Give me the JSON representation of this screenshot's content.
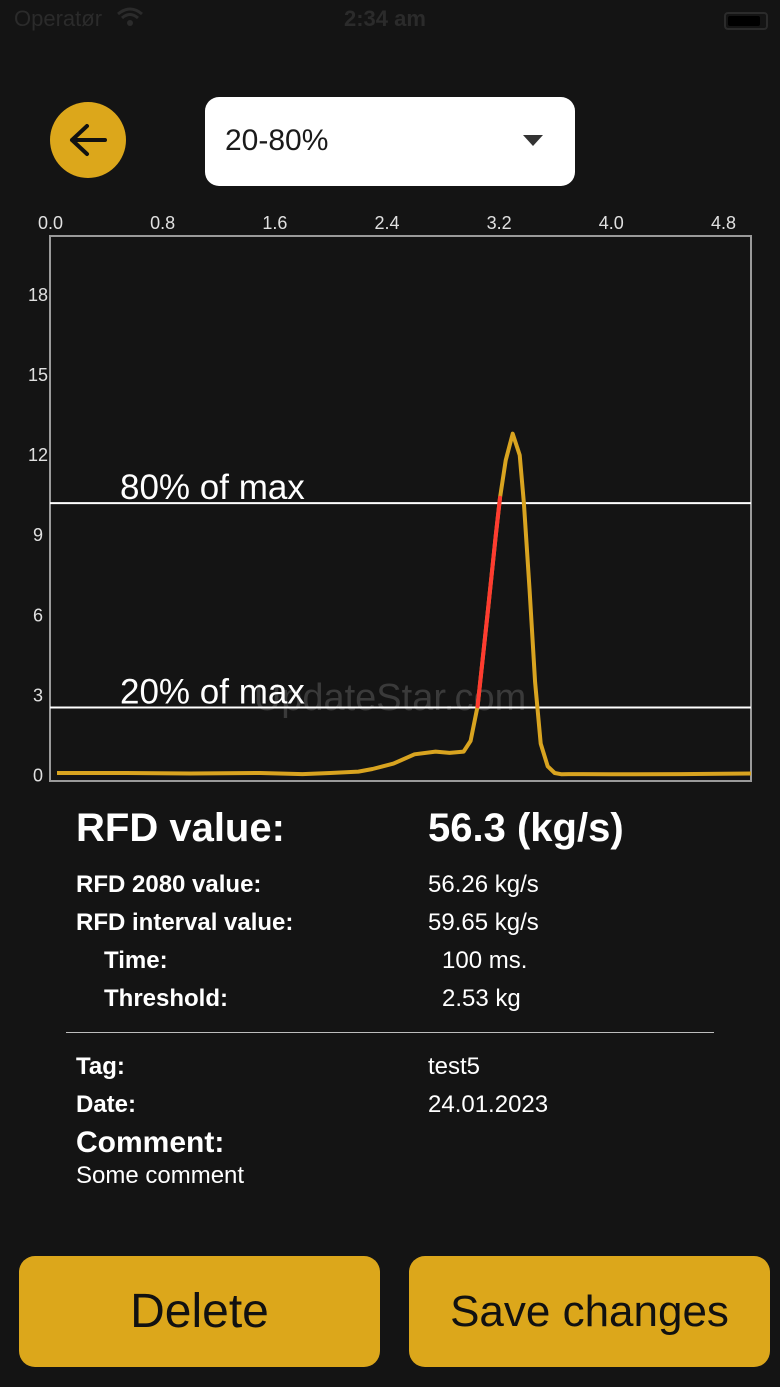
{
  "status_bar": {
    "carrier": "Operatør",
    "time": "2:34 am"
  },
  "header": {
    "dropdown_value": "20-80%"
  },
  "chart_data": {
    "type": "line",
    "x_ticks": [
      "0.0",
      "0.8",
      "1.6",
      "2.4",
      "3.2",
      "4.0",
      "4.8"
    ],
    "y_ticks": [
      "0",
      "3",
      "6",
      "9",
      "12",
      "15",
      "18"
    ],
    "xlim": [
      0,
      5.0
    ],
    "ylim": [
      -0.2,
      20.2
    ],
    "x_axis_position": "top",
    "series": [
      {
        "color": "#d9a420",
        "x": [
          0.05,
          0.5,
          1.0,
          1.5,
          1.8,
          2.0,
          2.2,
          2.3,
          2.45,
          2.6,
          2.75,
          2.85,
          2.95,
          3.0,
          3.05,
          3.12,
          3.18,
          3.21,
          3.25,
          3.3,
          3.35,
          3.38,
          3.42,
          3.46,
          3.5,
          3.55,
          3.6,
          3.65,
          3.7,
          3.8,
          4.0,
          4.5,
          5.0
        ],
        "y": [
          0.1,
          0.1,
          0.08,
          0.1,
          0.06,
          0.1,
          0.15,
          0.25,
          0.45,
          0.8,
          0.9,
          0.85,
          0.9,
          1.3,
          2.6,
          6.0,
          9.0,
          10.4,
          11.8,
          12.8,
          12.0,
          10.2,
          7.0,
          3.5,
          1.2,
          0.35,
          0.1,
          0.05,
          0.06,
          0.06,
          0.05,
          0.06,
          0.08
        ]
      }
    ],
    "highlight": {
      "color": "#ff3b30",
      "x_range": [
        3.05,
        3.21
      ]
    },
    "reference_lines": [
      {
        "label": "80% of max",
        "y": 10.2
      },
      {
        "label": "20% of max",
        "y": 2.55
      }
    ],
    "watermark": "UpdateStar.com"
  },
  "results": {
    "rfd_label": "RFD value:",
    "rfd_value": "56.3 (kg/s)",
    "rfd2080_label": "RFD 2080 value:",
    "rfd2080_value": "56.26 kg/s",
    "interval_label": "RFD interval value:",
    "interval_value": "59.65 kg/s",
    "time_label": "Time:",
    "time_value": "100 ms.",
    "threshold_label": "Threshold:",
    "threshold_value": "2.53 kg"
  },
  "details": {
    "tag_label": "Tag:",
    "tag_value": "test5",
    "date_label": "Date:",
    "date_value": "24.01.2023",
    "comment_label": "Comment:",
    "comment_value": "Some comment"
  },
  "actions": {
    "delete_label": "Delete",
    "save_label": "Save changes"
  },
  "colors": {
    "accent": "#dca71b",
    "background": "#141414",
    "curve": "#d9a420",
    "highlight": "#ff3b30"
  },
  "icons": {
    "back": "arrow-left-icon",
    "dropdown": "triangle-down-icon",
    "wifi": "wifi-icon",
    "battery": "battery-icon"
  }
}
